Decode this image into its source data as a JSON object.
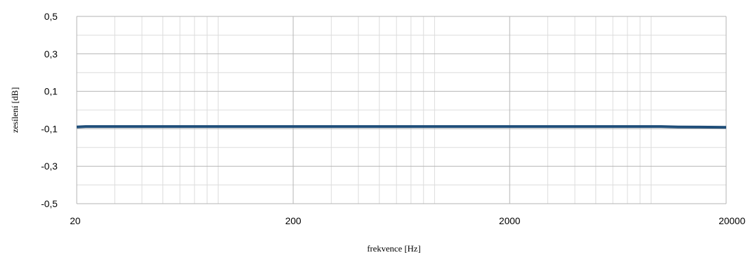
{
  "chart_data": {
    "type": "line",
    "title": "",
    "xlabel": "frekvence [Hz]",
    "ylabel": "zesílení [dB]",
    "x_scale": "log",
    "xlim": [
      20,
      20000
    ],
    "ylim": [
      -0.5,
      0.5
    ],
    "x_ticks": [
      20,
      200,
      2000,
      20000
    ],
    "x_tick_labels": [
      "20",
      "200",
      "2000",
      "20000"
    ],
    "y_ticks": [
      0.5,
      0.3,
      0.1,
      -0.1,
      -0.3,
      -0.5
    ],
    "y_tick_labels": [
      "0,5",
      "0,3",
      "0,1",
      "-0,1",
      "-0,3",
      "-0,5"
    ],
    "grid": true,
    "series": [
      {
        "color": "#1f4e79",
        "x": [
          20,
          22,
          50,
          100,
          200,
          500,
          1000,
          2000,
          5000,
          10000,
          12000,
          15000,
          20000
        ],
        "y": [
          -0.09,
          -0.088,
          -0.088,
          -0.088,
          -0.088,
          -0.088,
          -0.088,
          -0.088,
          -0.088,
          -0.088,
          -0.09,
          -0.091,
          -0.092
        ]
      }
    ]
  }
}
